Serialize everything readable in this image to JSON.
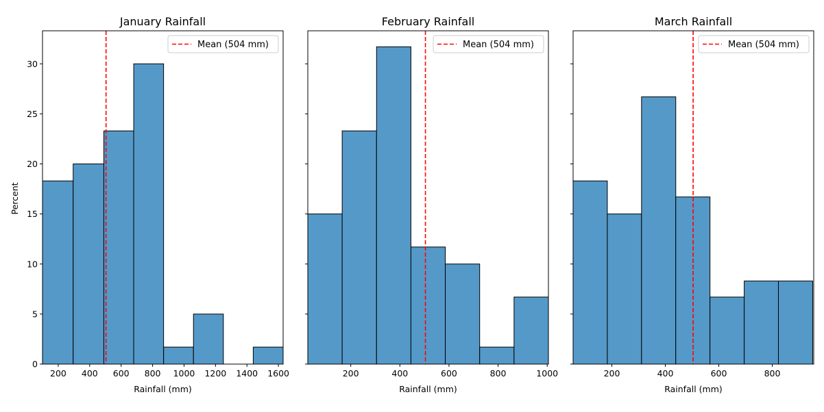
{
  "figure": {
    "ylabel": "Percent"
  },
  "chart_data": [
    {
      "type": "bar",
      "title": "January Rainfall",
      "xlabel": "Rainfall (mm)",
      "ylabel": "Percent",
      "xlim": [
        100,
        1630
      ],
      "ylim": [
        0,
        33.3
      ],
      "xticks": [
        200,
        400,
        600,
        800,
        1000,
        1200,
        1400,
        1600
      ],
      "yticks": [
        0,
        5,
        10,
        15,
        20,
        25,
        30
      ],
      "bin_edges": [
        100,
        295,
        490,
        680,
        870,
        1060,
        1250,
        1440,
        1630
      ],
      "values": [
        18.3,
        20.0,
        23.3,
        30.0,
        1.7,
        5.0,
        0.0,
        1.7
      ],
      "mean": 504,
      "legend": {
        "label": "Mean (504 mm)",
        "position": "top-right"
      },
      "colors": {
        "bar": "#5599c8",
        "edge": "#000000",
        "mean": "#ff0000"
      }
    },
    {
      "type": "bar",
      "title": "February Rainfall",
      "xlabel": "Rainfall (mm)",
      "ylabel": "",
      "xlim": [
        25,
        1005
      ],
      "ylim": [
        0,
        33.3
      ],
      "xticks": [
        200,
        400,
        600,
        800,
        1000
      ],
      "yticks": [
        0,
        5,
        10,
        15,
        20,
        25,
        30
      ],
      "bin_edges": [
        25,
        165,
        305,
        445,
        585,
        725,
        865,
        1005
      ],
      "values": [
        15.0,
        23.3,
        31.7,
        11.7,
        10.0,
        1.7,
        6.7
      ],
      "mean": 504,
      "legend": {
        "label": "Mean (504 mm)",
        "position": "top-right"
      },
      "colors": {
        "bar": "#5599c8",
        "edge": "#000000",
        "mean": "#ff0000"
      }
    },
    {
      "type": "bar",
      "title": "March Rainfall",
      "xlabel": "Rainfall (mm)",
      "ylabel": "",
      "xlim": [
        55,
        955
      ],
      "ylim": [
        0,
        33.3
      ],
      "xticks": [
        200,
        400,
        600,
        800
      ],
      "yticks": [
        0,
        5,
        10,
        15,
        20,
        25,
        30
      ],
      "bin_edges": [
        55,
        183,
        311,
        439,
        567,
        695,
        823,
        951
      ],
      "values": [
        18.3,
        15.0,
        26.7,
        16.7,
        6.7,
        8.3,
        8.3
      ],
      "mean": 504,
      "legend": {
        "label": "Mean (504 mm)",
        "position": "top-right"
      },
      "colors": {
        "bar": "#5599c8",
        "edge": "#000000",
        "mean": "#ff0000"
      }
    }
  ]
}
